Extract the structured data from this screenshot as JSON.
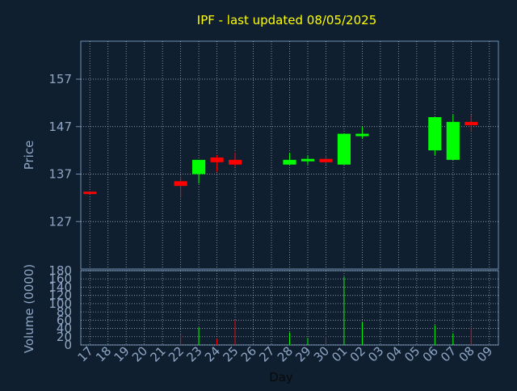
{
  "chart_data": {
    "type": "candlestick",
    "title": "IPF - last updated 08/05/2025",
    "xlabel": "Day",
    "ylabel_price": "Price",
    "ylabel_volume": "Volume (0000)",
    "price_ylim": [
      117,
      165
    ],
    "price_ticks": [
      127,
      137,
      147,
      157
    ],
    "volume_ylim": [
      0,
      180
    ],
    "volume_ticks": [
      0,
      20,
      40,
      60,
      80,
      100,
      120,
      140,
      160,
      180
    ],
    "grid": true,
    "days": [
      "17",
      "18",
      "19",
      "20",
      "21",
      "22",
      "23",
      "24",
      "25",
      "26",
      "27",
      "28",
      "29",
      "30",
      "01",
      "02",
      "03",
      "04",
      "05",
      "06",
      "07",
      "08",
      "09"
    ],
    "candles": [
      {
        "day": "17",
        "open": 133.3,
        "high": 133.3,
        "low": 133.0,
        "close": 133.0
      },
      {
        "day": "22",
        "open": 135.5,
        "high": 136.5,
        "low": 132.0,
        "close": 134.5
      },
      {
        "day": "23",
        "open": 137.0,
        "high": 140.0,
        "low": 135.0,
        "close": 140.0
      },
      {
        "day": "24",
        "open": 140.5,
        "high": 141.0,
        "low": 137.5,
        "close": 139.5
      },
      {
        "day": "25",
        "open": 140.0,
        "high": 141.5,
        "low": 138.5,
        "close": 139.0
      },
      {
        "day": "28",
        "open": 139.0,
        "high": 141.5,
        "low": 139.0,
        "close": 140.0
      },
      {
        "day": "29",
        "open": 140.0,
        "high": 141.0,
        "low": 139.0,
        "close": 140.2
      },
      {
        "day": "30",
        "open": 140.2,
        "high": 141.0,
        "low": 139.0,
        "close": 139.5
      },
      {
        "day": "01",
        "open": 139.0,
        "high": 145.5,
        "low": 139.0,
        "close": 145.5
      },
      {
        "day": "02",
        "open": 145.0,
        "high": 147.0,
        "low": 144.5,
        "close": 145.5
      },
      {
        "day": "06",
        "open": 142.0,
        "high": 149.0,
        "low": 141.0,
        "close": 149.0
      },
      {
        "day": "07",
        "open": 140.0,
        "high": 149.5,
        "low": 140.0,
        "close": 148.0
      },
      {
        "day": "08",
        "open": 148.0,
        "high": 149.5,
        "low": 146.0,
        "close": 147.3
      }
    ],
    "volumes": [
      {
        "day": "17",
        "value": 0,
        "color": "#00ff00"
      },
      {
        "day": "22",
        "value": 25,
        "color": "#ff0000"
      },
      {
        "day": "23",
        "value": 42,
        "color": "#00ff00"
      },
      {
        "day": "24",
        "value": 15,
        "color": "#ff0000"
      },
      {
        "day": "25",
        "value": 60,
        "color": "#ff0000"
      },
      {
        "day": "28",
        "value": 30,
        "color": "#00ff00"
      },
      {
        "day": "29",
        "value": 17,
        "color": "#00ff00"
      },
      {
        "day": "30",
        "value": 22,
        "color": "#ff0000"
      },
      {
        "day": "01",
        "value": 165,
        "color": "#00ff00"
      },
      {
        "day": "02",
        "value": 55,
        "color": "#00ff00"
      },
      {
        "day": "06",
        "value": 48,
        "color": "#00ff00"
      },
      {
        "day": "07",
        "value": 28,
        "color": "#00ff00"
      },
      {
        "day": "08",
        "value": 40,
        "color": "#ff0000"
      }
    ],
    "colors": {
      "background": "#0f1f30",
      "up": "#00ff00",
      "down": "#ff0000",
      "title": "#ffff00",
      "axis_text": "#8fa6c4",
      "grid": "#ffffff",
      "frame": "#6f8fb0"
    }
  }
}
